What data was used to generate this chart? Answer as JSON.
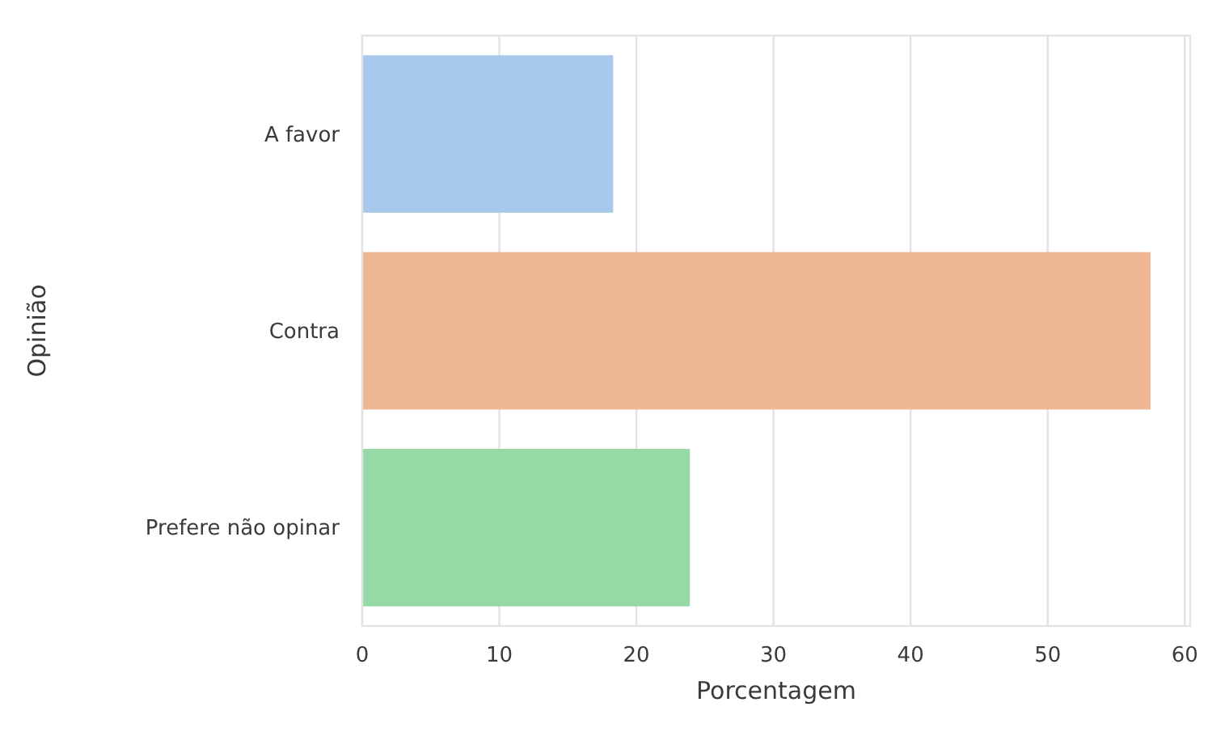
{
  "chart_data": {
    "type": "bar",
    "orientation": "horizontal",
    "xlabel": "Porcentagem",
    "ylabel": "Opinião",
    "categories": [
      "A favor",
      "Contra",
      "Prefere não opinar"
    ],
    "values": [
      18.3,
      57.5,
      23.9
    ],
    "colors": [
      "#a8c8ec",
      "#efb692",
      "#96d9a7"
    ],
    "xlim": [
      0,
      60.4
    ],
    "xticks": [
      0,
      10,
      20,
      30,
      40,
      50,
      60
    ],
    "grid": "x"
  }
}
